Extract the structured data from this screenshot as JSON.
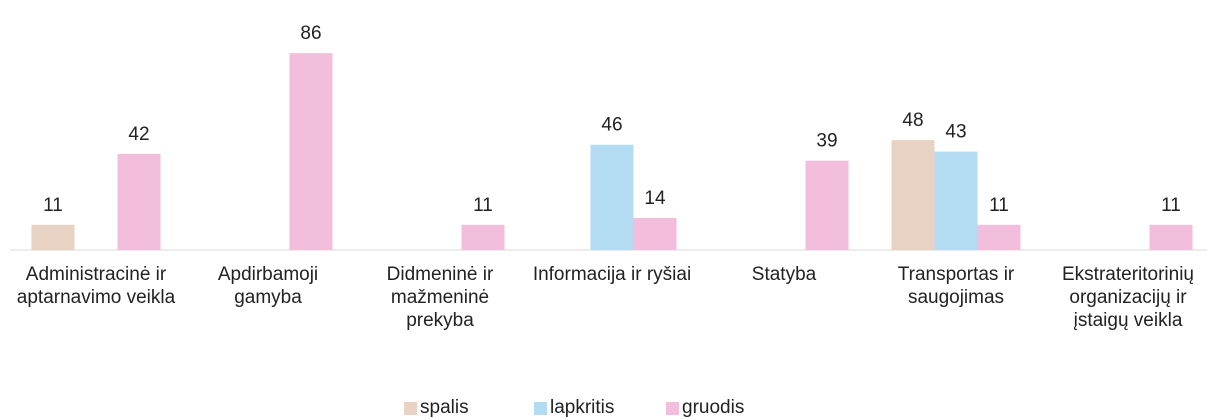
{
  "chart_data": {
    "type": "bar",
    "categories": [
      "Administracinė ir aptarnavimo veikla",
      "Apdirbamoji gamyba",
      "Didmeninė ir mažmeninė prekyba",
      "Informacija ir ryšiai",
      "Statyba",
      "Transportas ir saugojimas",
      "Ekstrateritorinių organizacijų ir įstaigų veikla"
    ],
    "series": [
      {
        "name": "spalis",
        "color": "#e8d2c4",
        "values": [
          11,
          null,
          null,
          null,
          null,
          48,
          null
        ]
      },
      {
        "name": "lapkritis",
        "color": "#b3dcf2",
        "values": [
          null,
          null,
          null,
          46,
          null,
          43,
          null
        ]
      },
      {
        "name": "gruodis",
        "color": "#f2bedb",
        "values": [
          42,
          86,
          11,
          14,
          39,
          11,
          11
        ]
      }
    ],
    "ylim": [
      0,
      90
    ],
    "legend": "bottom"
  }
}
